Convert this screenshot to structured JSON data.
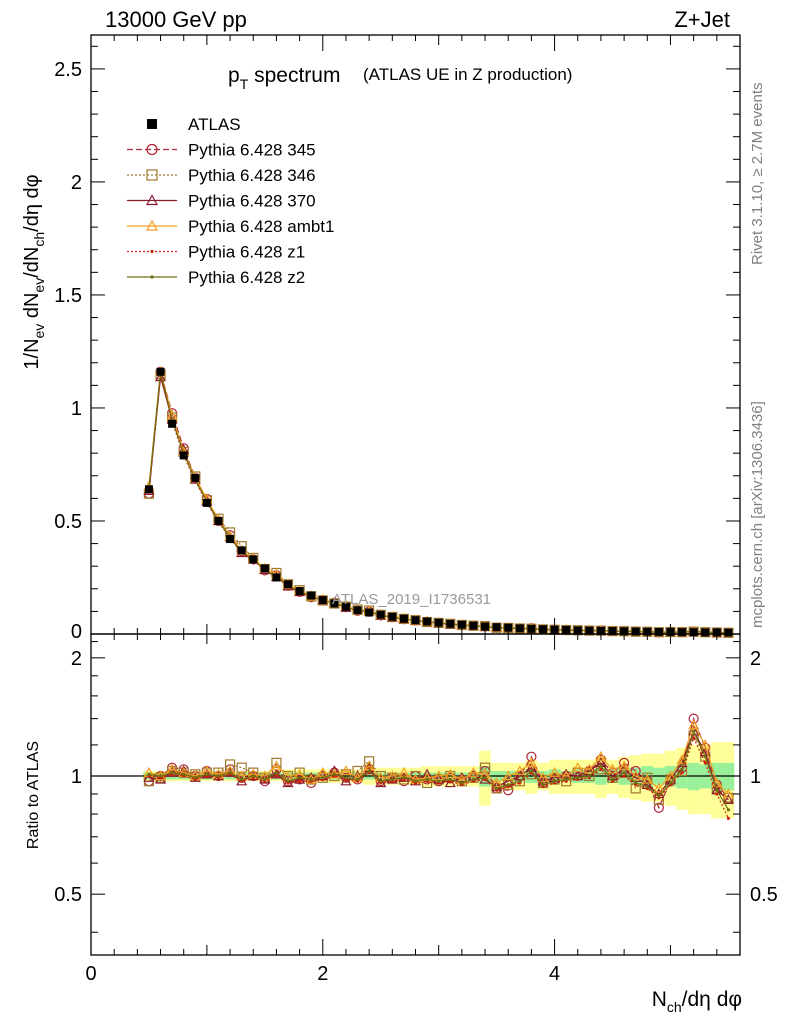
{
  "header": {
    "energy_label": "13000 GeV pp",
    "process_label": "Z+Jet"
  },
  "side_labels": {
    "rivet": "Rivet 3.1.10, ≥ 2.7M events",
    "mcplots": "mcplots.cern.ch [arXiv:1306.3436]"
  },
  "watermark": "ATLAS_2019_I1736531",
  "plot_title": {
    "main": "p",
    "sub": "T",
    "rest": " spectrum",
    "note": "(ATLAS UE in Z production)"
  },
  "axes": {
    "main_ylabel": "1/N_ev dN_ev/dN_ch/dη dφ",
    "ratio_ylabel": "Ratio to ATLAS",
    "xlabel": "N_ch/dη dφ"
  },
  "chart_data": {
    "type": "line",
    "x": [
      0.5,
      0.6,
      0.7,
      0.8,
      0.9,
      1.0,
      1.1,
      1.2,
      1.3,
      1.4,
      1.5,
      1.6,
      1.7,
      1.8,
      1.9,
      2.0,
      2.1,
      2.2,
      2.3,
      2.4,
      2.5,
      2.6,
      2.7,
      2.8,
      2.9,
      3.0,
      3.1,
      3.2,
      3.3,
      3.4,
      3.5,
      3.6,
      3.7,
      3.8,
      3.9,
      4.0,
      4.1,
      4.2,
      4.3,
      4.4,
      4.5,
      4.6,
      4.7,
      4.8,
      4.9,
      5.0,
      5.1,
      5.2,
      5.3,
      5.4,
      5.5
    ],
    "xlim": [
      0,
      5.6
    ],
    "ylim": [
      0,
      2.65
    ],
    "ratio_ylim": [
      0.35,
      2.3
    ],
    "x_ticks": [
      0,
      2,
      4
    ],
    "y_ticks": [
      0.5,
      1,
      1.5,
      2,
      2.5
    ],
    "ratio_ticks": [
      0.5,
      1,
      2
    ],
    "reference": {
      "name": "ATLAS",
      "values": [
        0.64,
        1.16,
        0.93,
        0.79,
        0.69,
        0.58,
        0.5,
        0.42,
        0.37,
        0.33,
        0.29,
        0.25,
        0.22,
        0.19,
        0.17,
        0.15,
        0.135,
        0.12,
        0.105,
        0.095,
        0.085,
        0.076,
        0.068,
        0.061,
        0.055,
        0.05,
        0.045,
        0.041,
        0.037,
        0.033,
        0.03,
        0.028,
        0.025,
        0.023,
        0.021,
        0.019,
        0.018,
        0.016,
        0.015,
        0.014,
        0.013,
        0.012,
        0.011,
        0.01,
        0.009,
        0.009,
        0.008,
        0.008,
        0.007,
        0.007,
        0.006
      ]
    },
    "series": [
      {
        "name": "Pythia 6.428 345",
        "color": "#b0243c",
        "marker": "circle",
        "dash": "6,3",
        "ratio": [
          0.97,
          1.0,
          1.05,
          1.04,
          1.0,
          1.03,
          1.0,
          1.04,
          0.99,
          1.0,
          0.97,
          1.04,
          0.97,
          0.98,
          0.96,
          1.0,
          1.02,
          0.99,
          0.98,
          1.04,
          0.97,
          0.99,
          0.97,
          1.0,
          0.98,
          0.97,
          0.99,
          0.98,
          1.0,
          1.03,
          0.93,
          0.92,
          1.0,
          1.12,
          0.96,
          0.98,
          1.0,
          1.02,
          1.03,
          1.1,
          1.02,
          1.08,
          1.03,
          0.97,
          0.83,
          0.97,
          1.05,
          1.4,
          1.18,
          0.95,
          0.88
        ]
      },
      {
        "name": "Pythia 6.428 346",
        "color": "#a0782a",
        "marker": "square",
        "dash": "2,2",
        "ratio": [
          0.97,
          0.99,
          1.03,
          1.02,
          1.01,
          1.02,
          1.02,
          1.07,
          1.05,
          1.02,
          0.99,
          1.08,
          1.0,
          1.02,
          0.98,
          0.99,
          1.0,
          1.01,
          1.03,
          1.09,
          1.0,
          0.99,
          0.98,
          1.0,
          0.96,
          0.98,
          1.0,
          0.97,
          0.99,
          1.05,
          0.93,
          0.95,
          0.97,
          1.01,
          0.96,
          0.98,
          0.97,
          1.02,
          1.0,
          1.04,
          0.99,
          1.02,
          0.93,
          0.99,
          0.87,
          0.98,
          1.03,
          1.27,
          1.12,
          0.93,
          0.88
        ]
      },
      {
        "name": "Pythia 6.428 370",
        "color": "#8b1a2a",
        "marker": "triangle",
        "dash": "",
        "ratio": [
          0.99,
          0.98,
          1.02,
          1.03,
          0.99,
          1.01,
          1.0,
          1.02,
          0.97,
          1.0,
          0.98,
          1.01,
          0.96,
          0.98,
          0.99,
          1.0,
          1.03,
          0.97,
          1.0,
          1.05,
          0.96,
          0.98,
          0.99,
          0.97,
          1.01,
          0.98,
          0.96,
          0.99,
          1.0,
          0.98,
          0.94,
          0.97,
          1.0,
          1.05,
          0.97,
          0.99,
          1.01,
          1.0,
          1.03,
          1.08,
          1.0,
          1.04,
          0.99,
          0.95,
          0.9,
          0.98,
          1.08,
          1.3,
          1.15,
          0.92,
          0.87
        ]
      },
      {
        "name": "Pythia 6.428 ambt1",
        "color": "#f0a020",
        "marker": "triangle",
        "dash": "",
        "ratio": [
          1.02,
          1.0,
          1.04,
          1.02,
          1.0,
          1.03,
          1.01,
          1.03,
          1.0,
          1.01,
          1.0,
          1.06,
          1.0,
          1.01,
          0.98,
          1.02,
          1.01,
          1.03,
          0.99,
          1.06,
          0.99,
          1.0,
          1.02,
          0.98,
          0.99,
          1.0,
          1.01,
          0.98,
          1.02,
          1.01,
          0.96,
          1.0,
          1.03,
          1.08,
          0.99,
          1.02,
          1.0,
          1.05,
          1.04,
          1.12,
          1.04,
          1.06,
          1.0,
          0.98,
          0.93,
          1.0,
          1.1,
          1.35,
          1.2,
          0.96,
          0.9
        ]
      },
      {
        "name": "Pythia 6.428 z1",
        "color": "#d02010",
        "marker": "dot",
        "dash": "2,2",
        "ratio": [
          1.0,
          0.99,
          1.01,
          1.0,
          0.98,
          1.0,
          0.99,
          1.01,
          0.97,
          0.99,
          0.97,
          1.0,
          0.96,
          0.97,
          0.97,
          0.98,
          1.0,
          0.98,
          0.97,
          1.02,
          0.96,
          0.97,
          0.98,
          0.96,
          0.97,
          0.96,
          0.97,
          0.95,
          0.97,
          0.98,
          0.92,
          0.94,
          0.96,
          1.02,
          0.94,
          0.96,
          0.97,
          0.98,
          0.99,
          1.04,
          0.97,
          1.0,
          0.95,
          0.93,
          0.88,
          0.95,
          1.02,
          1.25,
          1.08,
          0.9,
          0.78
        ]
      },
      {
        "name": "Pythia 6.428 z2",
        "color": "#707010",
        "marker": "dot",
        "dash": "",
        "ratio": [
          1.01,
          1.0,
          1.02,
          1.01,
          0.99,
          1.01,
          1.0,
          1.02,
          0.98,
          1.0,
          0.98,
          1.02,
          0.97,
          0.99,
          0.98,
          0.99,
          1.01,
          0.99,
          0.98,
          1.03,
          0.97,
          0.98,
          0.99,
          0.97,
          0.98,
          0.97,
          0.98,
          0.96,
          0.98,
          0.99,
          0.93,
          0.95,
          0.97,
          1.03,
          0.95,
          0.97,
          0.98,
          0.99,
          1.0,
          1.06,
          0.98,
          1.02,
          0.96,
          0.94,
          0.89,
          0.96,
          1.04,
          1.3,
          1.12,
          0.92,
          0.82
        ]
      }
    ],
    "band_stat": [
      0.02,
      0.02,
      0.02,
      0.02,
      0.02,
      0.02,
      0.02,
      0.02,
      0.02,
      0.02,
      0.02,
      0.02,
      0.02,
      0.02,
      0.02,
      0.02,
      0.02,
      0.02,
      0.02,
      0.02,
      0.02,
      0.02,
      0.02,
      0.02,
      0.02,
      0.02,
      0.02,
      0.02,
      0.02,
      0.06,
      0.03,
      0.03,
      0.03,
      0.04,
      0.03,
      0.04,
      0.03,
      0.04,
      0.04,
      0.05,
      0.04,
      0.05,
      0.05,
      0.06,
      0.05,
      0.06,
      0.07,
      0.08,
      0.07,
      0.08,
      0.08
    ],
    "band_total": [
      0.03,
      0.03,
      0.03,
      0.03,
      0.03,
      0.03,
      0.03,
      0.03,
      0.03,
      0.03,
      0.03,
      0.03,
      0.04,
      0.04,
      0.04,
      0.04,
      0.04,
      0.04,
      0.04,
      0.05,
      0.05,
      0.05,
      0.05,
      0.05,
      0.06,
      0.06,
      0.06,
      0.06,
      0.06,
      0.16,
      0.08,
      0.08,
      0.08,
      0.1,
      0.08,
      0.1,
      0.1,
      0.1,
      0.1,
      0.12,
      0.1,
      0.12,
      0.13,
      0.14,
      0.14,
      0.16,
      0.18,
      0.2,
      0.2,
      0.22,
      0.22
    ]
  }
}
